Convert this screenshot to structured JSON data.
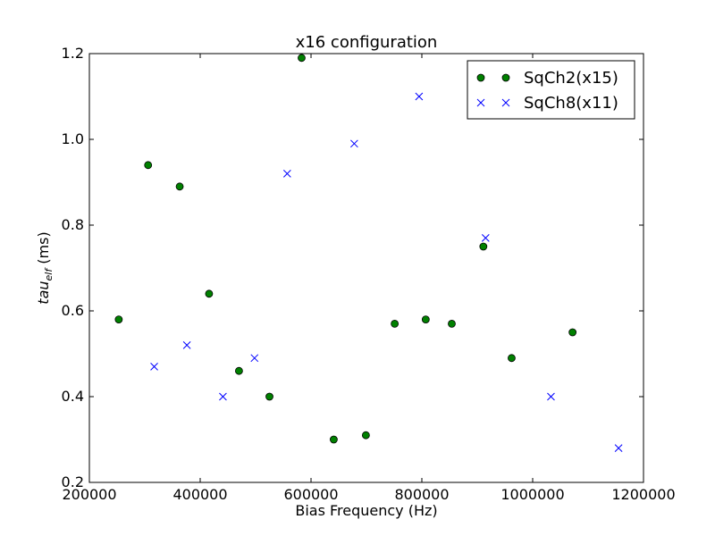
{
  "chart_data": {
    "type": "scatter",
    "title": "x16 configuration",
    "xlabel": "Bias Frequency (Hz)",
    "ylabel": "tau_elf (ms)",
    "ylabel_parts": {
      "base": "tau",
      "sub": "elf",
      "unit": " (ms)"
    },
    "xlim": [
      200000,
      1200000
    ],
    "ylim": [
      0.2,
      1.2
    ],
    "xticks": [
      200000,
      400000,
      600000,
      800000,
      1000000,
      1200000
    ],
    "xtick_labels": [
      "200000",
      "400000",
      "600000",
      "800000",
      "1000000",
      "1200000"
    ],
    "yticks": [
      0.2,
      0.4,
      0.6,
      0.8,
      1.0,
      1.2
    ],
    "ytick_labels": [
      "0.2",
      "0.4",
      "0.6",
      "0.8",
      "1.0",
      "1.2"
    ],
    "grid": false,
    "legend_position": "top-right",
    "series": [
      {
        "name": "SqCh2(x15)",
        "marker": "circle",
        "color": "#008000",
        "edge_color": "#000000",
        "points": [
          [
            253000,
            0.58
          ],
          [
            306000,
            0.94
          ],
          [
            363000,
            0.89
          ],
          [
            416000,
            0.64
          ],
          [
            470000,
            0.46
          ],
          [
            525000,
            0.4
          ],
          [
            583000,
            1.19
          ],
          [
            641000,
            0.3
          ],
          [
            699000,
            0.31
          ],
          [
            751000,
            0.57
          ],
          [
            807000,
            0.58
          ],
          [
            854000,
            0.57
          ],
          [
            911000,
            0.75
          ],
          [
            962000,
            0.49
          ],
          [
            1072000,
            0.55
          ]
        ]
      },
      {
        "name": "SqCh8(x11)",
        "marker": "x",
        "color": "#0000ff",
        "points": [
          [
            317000,
            0.47
          ],
          [
            376000,
            0.52
          ],
          [
            441000,
            0.4
          ],
          [
            498000,
            0.49
          ],
          [
            557000,
            0.92
          ],
          [
            678000,
            0.99
          ],
          [
            795000,
            1.1
          ],
          [
            915000,
            0.77
          ],
          [
            1033000,
            0.4
          ],
          [
            1155000,
            0.28
          ]
        ]
      }
    ]
  }
}
